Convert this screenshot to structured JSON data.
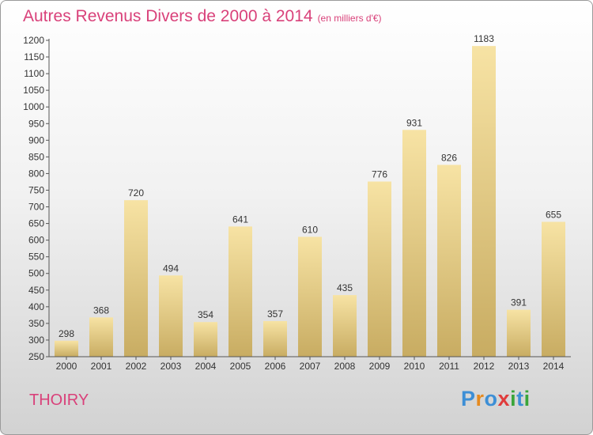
{
  "header": {
    "title": "Autres Revenus Divers de 2000 à 2014",
    "subtitle": "(en milliers d'€)"
  },
  "footer": {
    "commune": "THOIRY",
    "logo_text": "Proxiti"
  },
  "colors": {
    "title": "#d9417a",
    "bar_light": "#f7e3a4",
    "bar_dark": "#c8ac62",
    "axis": "#555555",
    "logo": [
      "#3d8fd6",
      "#e58a1f",
      "#3d8fd6",
      "#e03c3c",
      "#3aa53a",
      "#3d8fd6",
      "#3aa53a"
    ]
  },
  "chart_data": {
    "type": "bar",
    "categories": [
      "2000",
      "2001",
      "2002",
      "2003",
      "2004",
      "2005",
      "2006",
      "2007",
      "2008",
      "2009",
      "2010",
      "2011",
      "2012",
      "2013",
      "2014"
    ],
    "values": [
      298,
      368,
      720,
      494,
      354,
      641,
      357,
      610,
      435,
      776,
      931,
      826,
      1183,
      391,
      655
    ],
    "title": "Autres Revenus Divers de 2000 à 2014",
    "subtitle": "(en milliers d'€)",
    "xlabel": "",
    "ylabel": "",
    "ylim": [
      250,
      1200
    ],
    "ytick_step": 50,
    "grid": false,
    "legend": "none"
  }
}
